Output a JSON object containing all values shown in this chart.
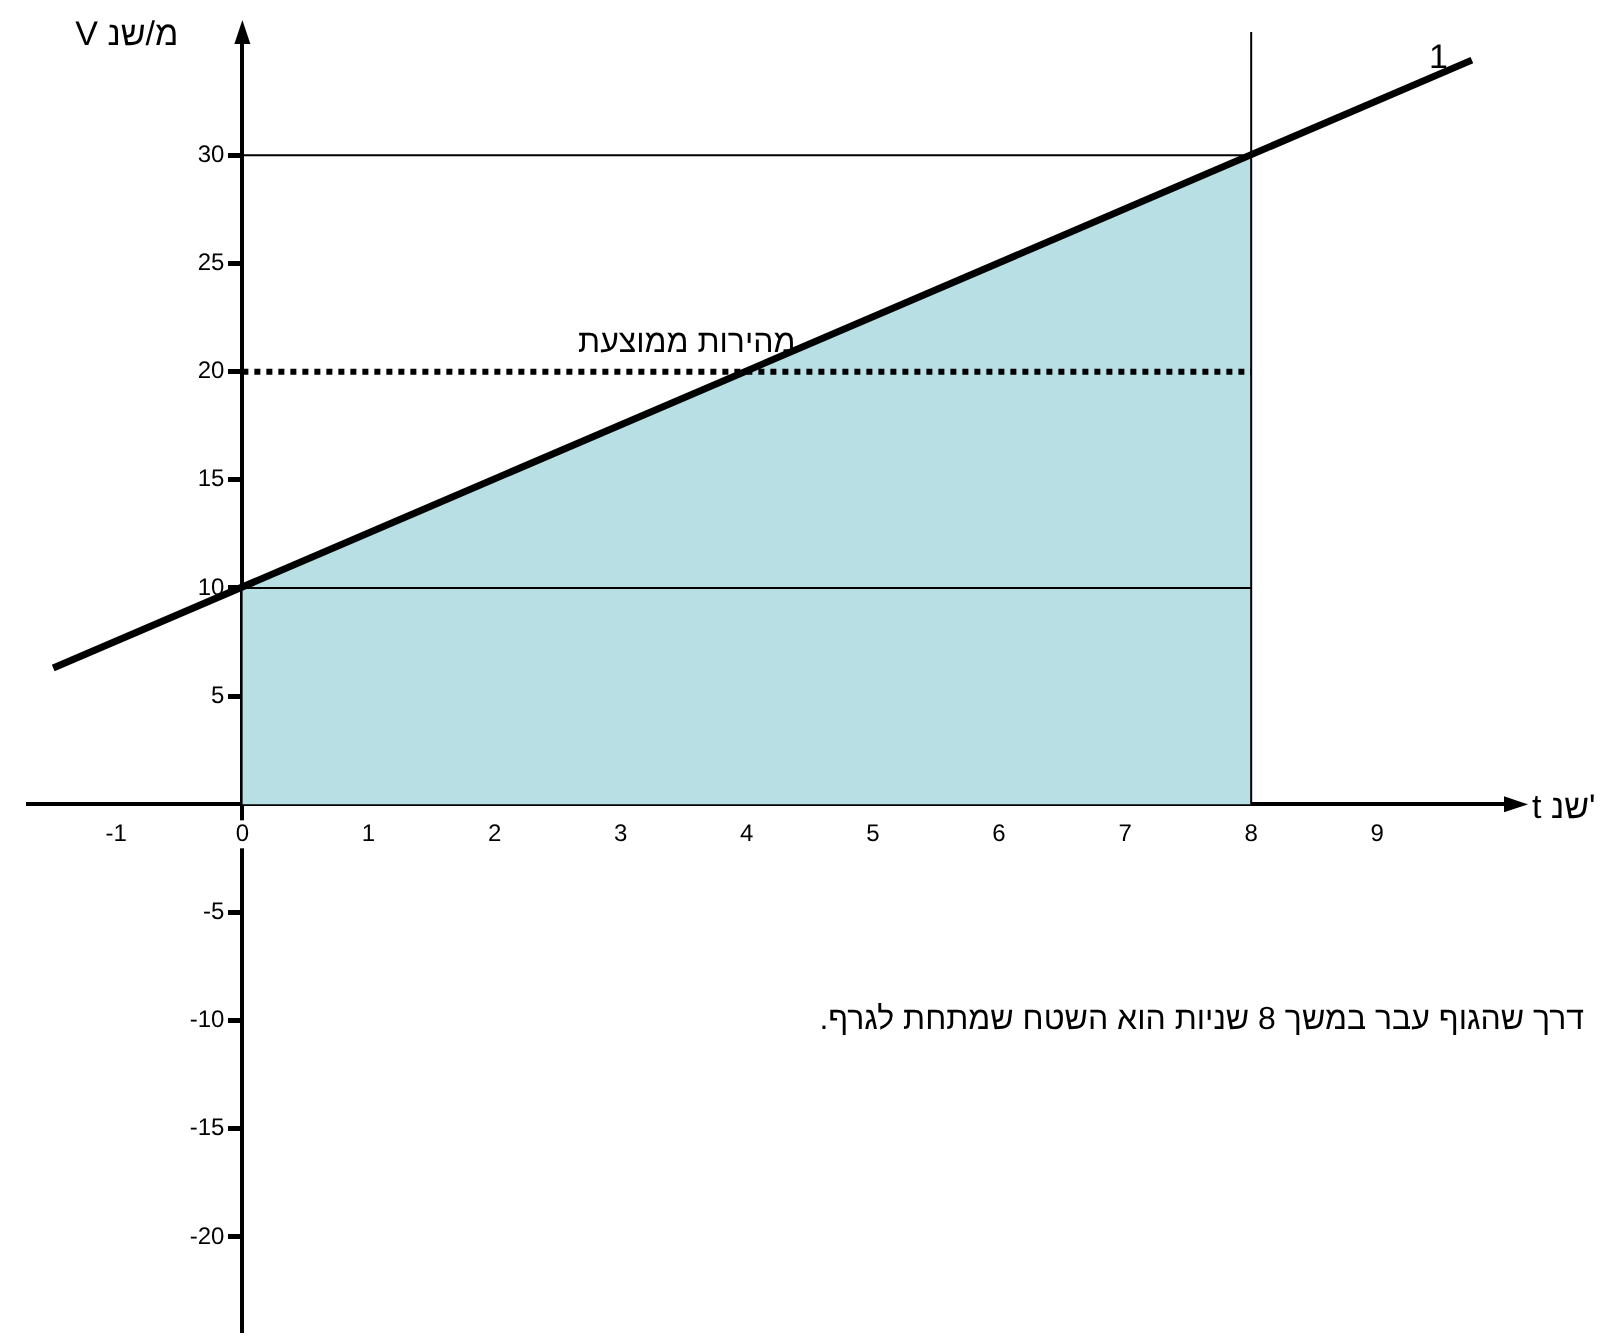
{
  "chart_data": {
    "type": "line",
    "xlabel": "t שנ'",
    "ylabel": "V מ/שנ",
    "xlim": [
      -1.7,
      10.1
    ],
    "ylim": [
      -24.3,
      35.7
    ],
    "xticks": [
      -1,
      0,
      1,
      2,
      3,
      4,
      5,
      6,
      7,
      8,
      9
    ],
    "yticks": [
      -20,
      -15,
      -10,
      -5,
      5,
      10,
      15,
      20,
      25,
      30
    ],
    "series": [
      {
        "type": "area",
        "x": [
          0,
          8
        ],
        "values": [
          10,
          30
        ],
        "color": "#b8e0e4"
      },
      {
        "type": "line",
        "name": "1",
        "x": [
          -1.5,
          9.75
        ],
        "values": [
          6.3,
          34.4
        ],
        "color": "#000000"
      }
    ],
    "ref_lines": [
      {
        "axis": "y",
        "value": 20,
        "label": "מהירות ממוצעת",
        "color": "#000000",
        "line_style": "dotted"
      },
      {
        "axis": "y",
        "value": 30,
        "color": "#000000"
      },
      {
        "axis": "y",
        "value": 10,
        "color": "#000000"
      },
      {
        "axis": "x",
        "value": 8,
        "color": "#000000"
      }
    ],
    "annotations": [
      "דרך שהגוף עבר במשך 8 שניות הוא השטח שמתחת לגרף."
    ],
    "grid": false,
    "legend": false,
    "marker": "none",
    "line_style": "solid"
  }
}
